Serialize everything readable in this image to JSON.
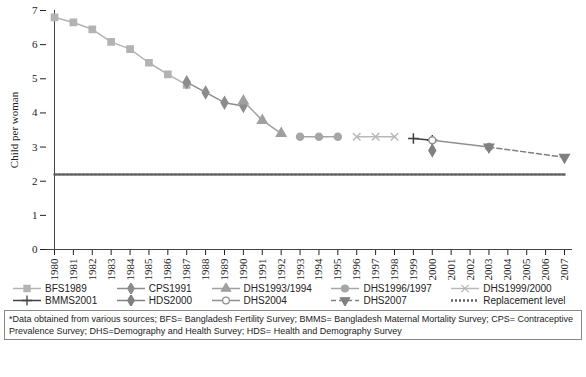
{
  "chart_data": {
    "type": "line",
    "y_label": "Child per woman",
    "note": "*Data obtained from various sources; BFS= Bangladesh Fertility Survey; BMMS= Bangladesh Maternal Mortality Survey; CPS= Contraceptive Prevalence Survey; DHS=Demography and Health Survey; HDS= Health and Demography Survey",
    "xlim": [
      1980,
      2007
    ],
    "xticks": [
      1980,
      1981,
      1982,
      1983,
      1984,
      1985,
      1986,
      1987,
      1988,
      1989,
      1990,
      1991,
      1992,
      1993,
      1994,
      1995,
      1996,
      1997,
      1998,
      1999,
      2000,
      2001,
      2002,
      2003,
      2004,
      2005,
      2006,
      2007
    ],
    "ylim": [
      0,
      7
    ],
    "yticks": [
      0,
      1,
      2,
      3,
      4,
      5,
      6,
      7
    ],
    "grid": false,
    "legend": "bottom",
    "series": [
      {
        "name": "BFS1989",
        "color": "#b3b3b3",
        "marker": "square",
        "line_style": "solid",
        "x": [
          1980,
          1981,
          1982,
          1983,
          1984,
          1985,
          1986,
          1987
        ],
        "values": [
          6.8,
          6.65,
          6.45,
          6.08,
          5.87,
          5.47,
          5.13,
          4.82
        ]
      },
      {
        "name": "CPS1991",
        "color": "#8c8c8c",
        "marker": "diamond",
        "line_style": "solid",
        "x": [
          1987,
          1988,
          1989,
          1990
        ],
        "values": [
          4.9,
          4.6,
          4.3,
          4.2
        ]
      },
      {
        "name": "DHS1993/1994",
        "color": "#a0a0a0",
        "marker": "triangle",
        "line_style": "solid",
        "x": [
          1990,
          1991,
          1992
        ],
        "values": [
          4.35,
          3.78,
          3.4
        ]
      },
      {
        "name": "DHS1996/1997",
        "color": "#a6a6a6",
        "marker": "circle",
        "line_style": "solid",
        "x": [
          1993,
          1994,
          1995
        ],
        "values": [
          3.3,
          3.3,
          3.3
        ]
      },
      {
        "name": "DHS1999/2000",
        "color": "#b8b8b8",
        "marker": "x",
        "line_style": "solid",
        "x": [
          1996,
          1997,
          1998
        ],
        "values": [
          3.3,
          3.3,
          3.3
        ]
      },
      {
        "name": "BMMS2001",
        "color": "#404040",
        "marker": "plus",
        "line_style": "solid",
        "x": [
          1999,
          2000
        ],
        "values": [
          3.25,
          3.2
        ]
      },
      {
        "name": "HDS2000",
        "color": "#808080",
        "marker": "diamond",
        "line_style": "solid",
        "x": [
          2000
        ],
        "values": [
          2.9
        ]
      },
      {
        "name": "DHS2004",
        "color": "#909090",
        "marker": "circle_open",
        "line_style": "solid",
        "x": [
          2000,
          2003
        ],
        "values": [
          3.2,
          3.0
        ]
      },
      {
        "name": "DHS2007",
        "color": "#808080",
        "marker": "triangle_down",
        "line_style": "dashed",
        "x": [
          2003,
          2007
        ],
        "values": [
          3.0,
          2.7
        ]
      },
      {
        "name": "Replacement level",
        "color": "#606060",
        "marker": "none",
        "line_style": "dotted",
        "x": [
          1980,
          2007
        ],
        "values": [
          2.2,
          2.2
        ]
      }
    ]
  }
}
